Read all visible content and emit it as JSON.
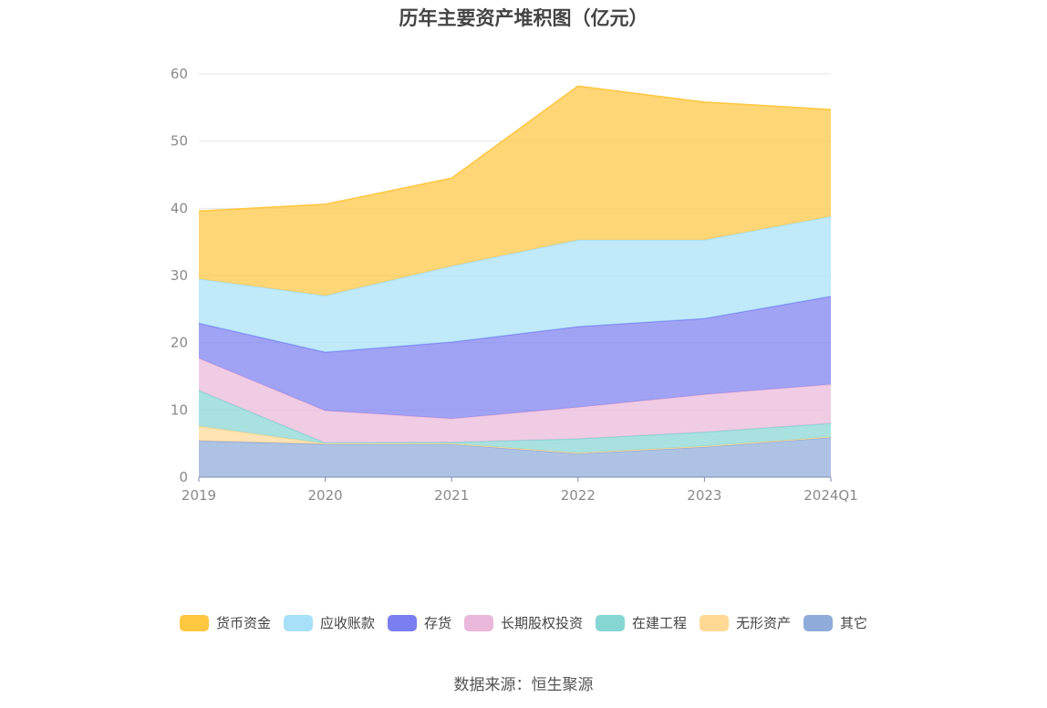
{
  "chart_data": {
    "type": "area",
    "stacked": true,
    "title": "历年主要资产堆积图（亿元）",
    "xlabel": "",
    "ylabel": "",
    "categories": [
      "2019",
      "2020",
      "2021",
      "2022",
      "2023",
      "2024Q1"
    ],
    "ylim": [
      0,
      60
    ],
    "yticks": [
      0,
      10,
      20,
      30,
      40,
      50,
      60
    ],
    "grid": true,
    "legend_position": "bottom",
    "series": [
      {
        "name": "其它",
        "color": "#8fabda",
        "values": [
          5.4,
          4.9,
          4.9,
          3.5,
          4.5,
          5.9
        ]
      },
      {
        "name": "无形资产",
        "color": "#ffd894",
        "values": [
          2.2,
          0.1,
          0.1,
          0.1,
          0.1,
          0.1
        ]
      },
      {
        "name": "在建工程",
        "color": "#86d6d4",
        "values": [
          5.3,
          0.1,
          0.2,
          2.1,
          2.1,
          2.0
        ]
      },
      {
        "name": "长期股权投资",
        "color": "#eab8da",
        "values": [
          4.8,
          4.8,
          3.5,
          4.7,
          5.6,
          5.8
        ]
      },
      {
        "name": "存货",
        "color": "#7b7ef0",
        "values": [
          5.2,
          8.7,
          11.4,
          12.0,
          11.3,
          13.1
        ]
      },
      {
        "name": "应收账款",
        "color": "#a7e0f8",
        "values": [
          6.6,
          8.4,
          11.3,
          12.9,
          11.7,
          11.9
        ]
      },
      {
        "name": "货币资金",
        "color": "#ffc640",
        "values": [
          10.1,
          13.6,
          13.1,
          22.9,
          20.5,
          15.9
        ]
      }
    ],
    "legend_order": [
      "货币资金",
      "应收账款",
      "存货",
      "长期股权投资",
      "在建工程",
      "无形资产",
      "其它"
    ]
  },
  "source_note": "数据来源：恒生聚源"
}
